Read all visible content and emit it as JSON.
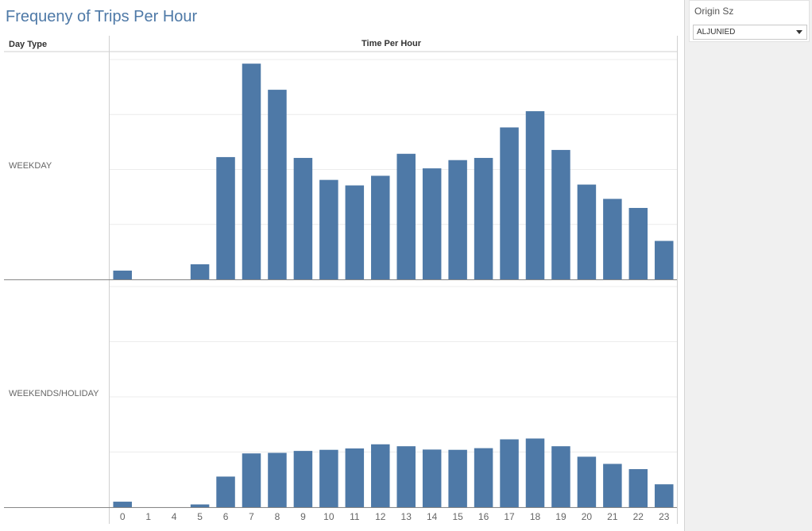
{
  "title": "Frequeny of Trips Per Hour",
  "headers": {
    "row": "Day Type",
    "col": "Time Per Hour"
  },
  "filter": {
    "label": "Origin Sz",
    "value": "ALJUNIED"
  },
  "colors": {
    "bar": "#4e79a7",
    "title": "#4e79a7"
  },
  "chart_data": {
    "type": "bar",
    "categories": [
      "0",
      "1",
      "4",
      "5",
      "6",
      "7",
      "8",
      "9",
      "10",
      "11",
      "12",
      "13",
      "14",
      "15",
      "16",
      "17",
      "18",
      "19",
      "20",
      "21",
      "22",
      "23"
    ],
    "rows": [
      {
        "name": "WEEKDAY",
        "values": [
          3.2,
          0,
          0,
          5.5,
          44.5,
          78.5,
          69,
          44.2,
          36.2,
          34.2,
          37.7,
          45.7,
          40.4,
          43.4,
          44.2,
          55.3,
          61.2,
          47.1,
          34.5,
          29.3,
          26,
          14
        ]
      },
      {
        "name": "WEEKENDS/HOLIDAY",
        "values": [
          2,
          0,
          0,
          1,
          11.1,
          19.5,
          19.7,
          20.4,
          20.8,
          21.3,
          22.8,
          22.1,
          20.9,
          20.8,
          21.4,
          24.6,
          24.9,
          22.1,
          18.3,
          15.7,
          13.8,
          8.3
        ]
      }
    ],
    "ylim": [
      0,
      80
    ],
    "grid": true
  }
}
